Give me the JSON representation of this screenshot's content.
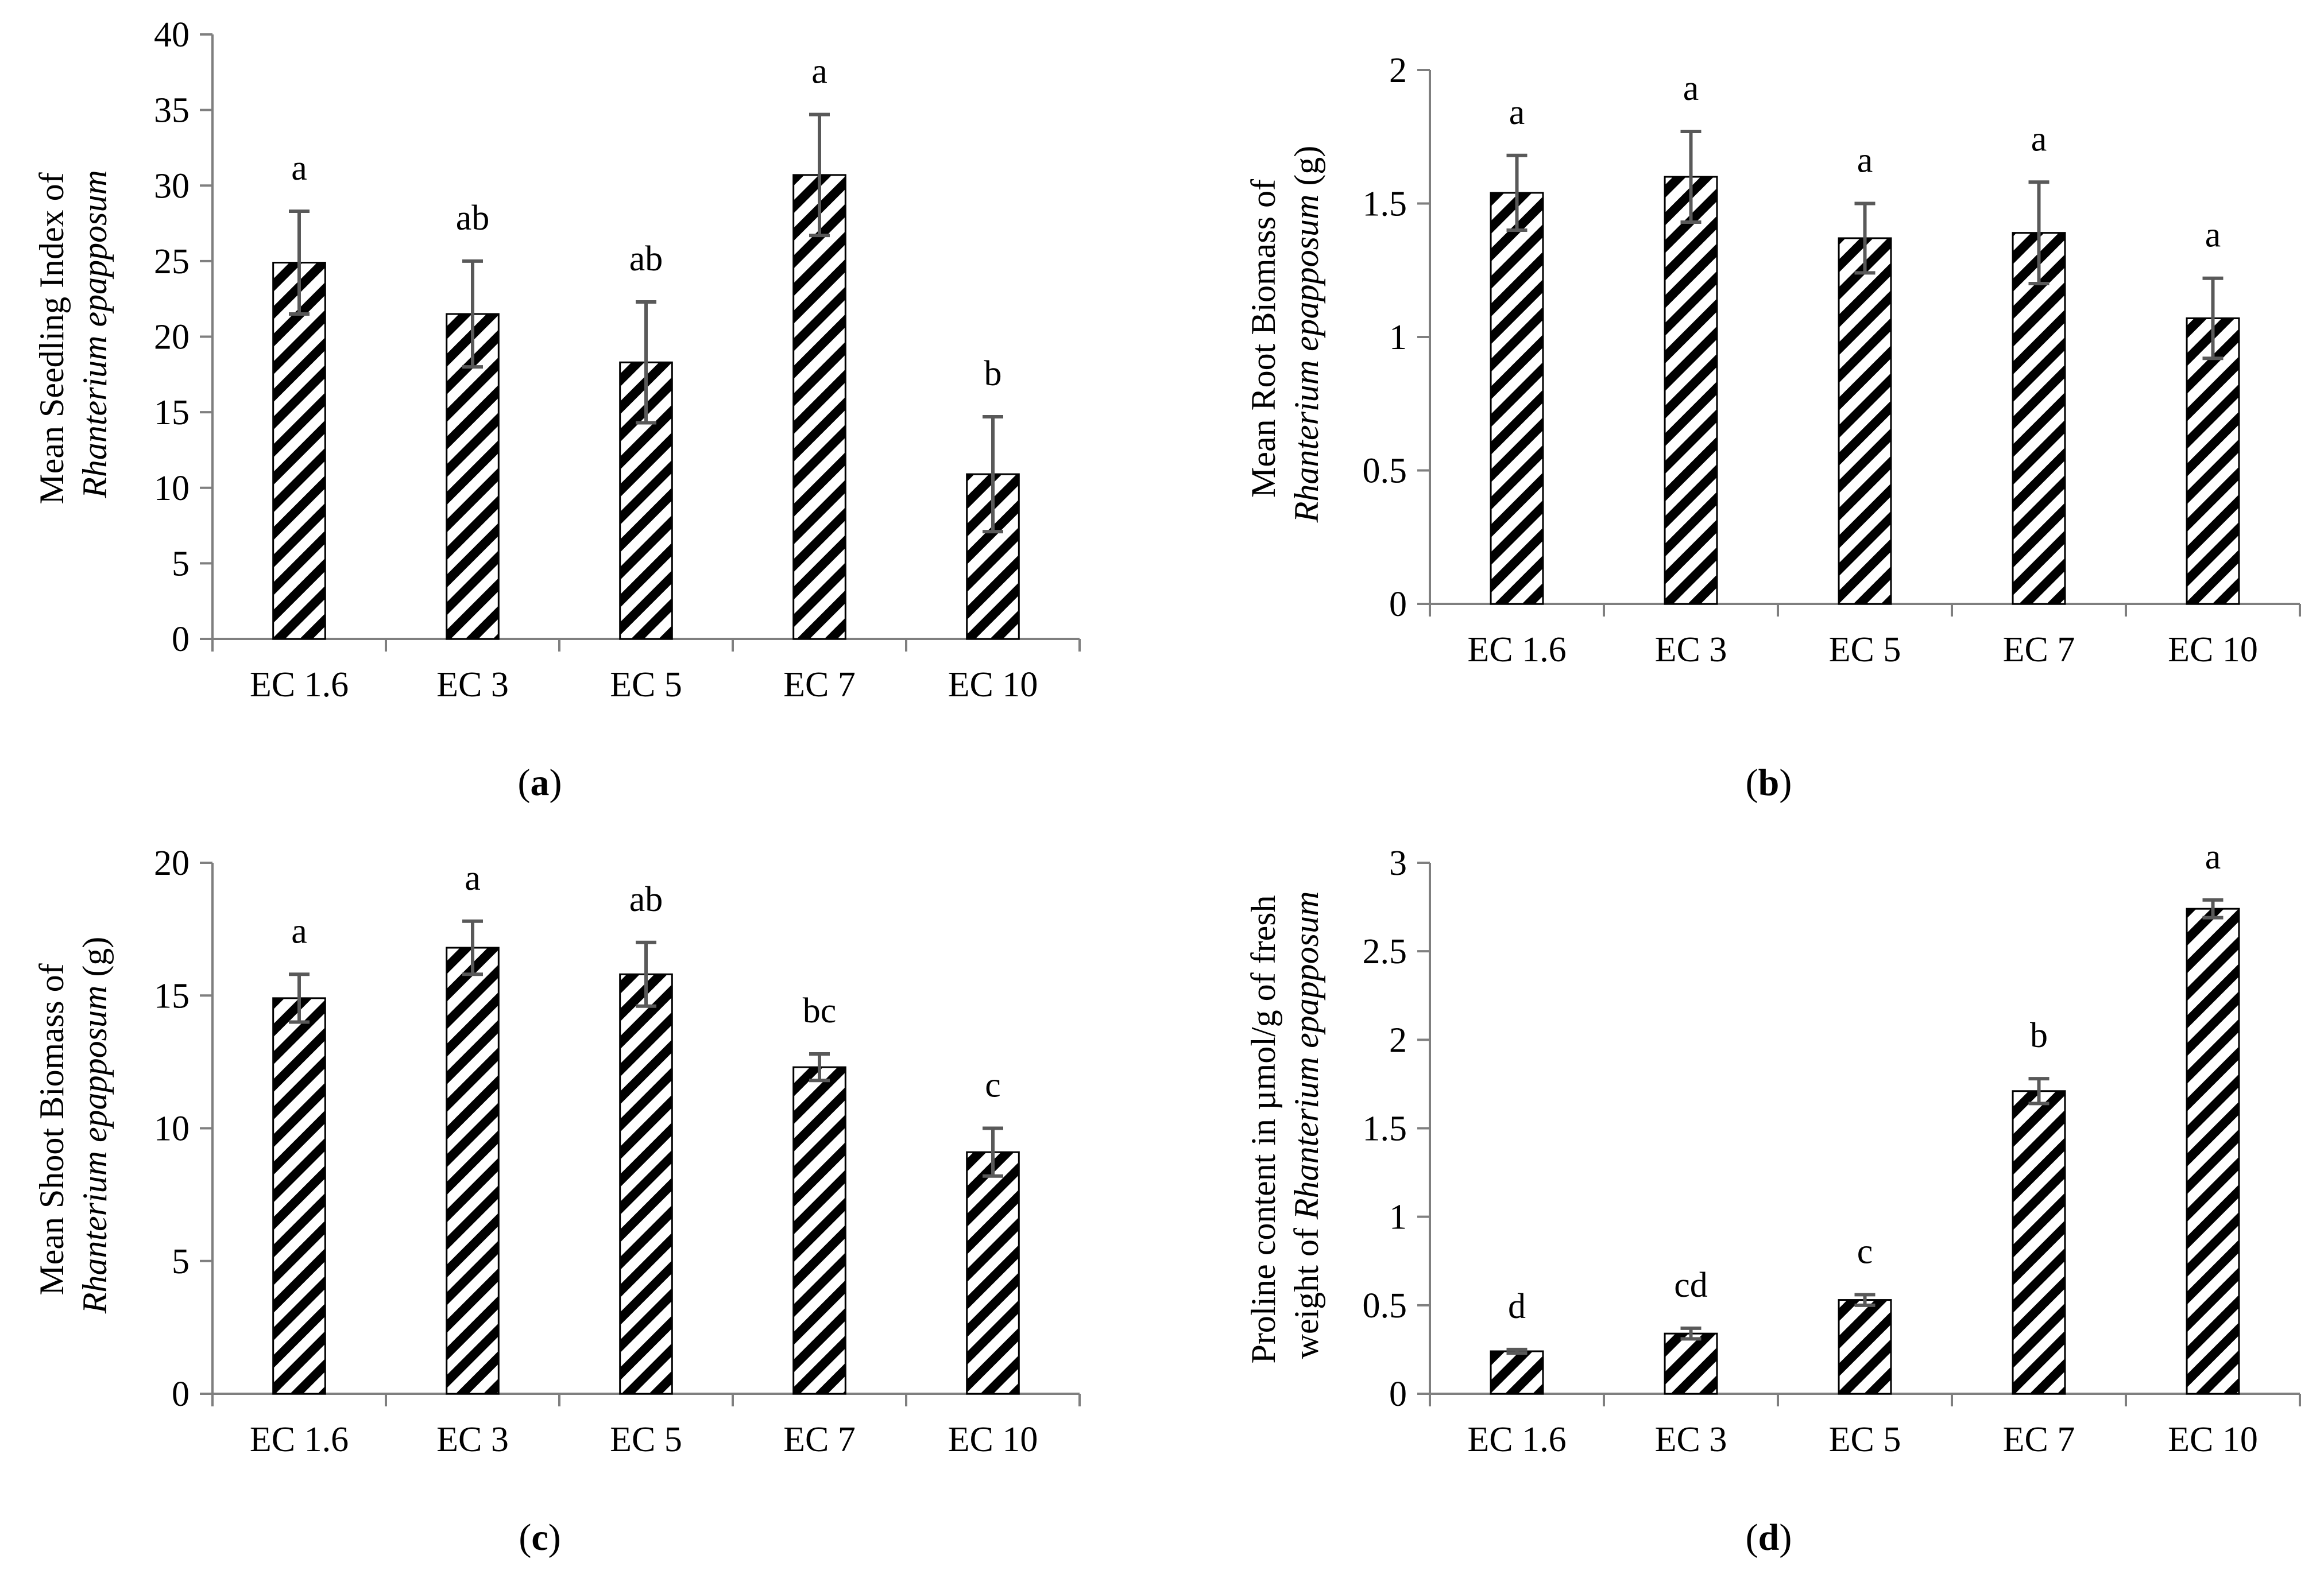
{
  "chart_data": [
    {
      "type": "bar",
      "panel_label": "a",
      "title": "",
      "ylabel_line1": "Mean Seedling Index of",
      "ylabel_species": "Rhanterium epapposum",
      "ylabel_unit": "",
      "categories": [
        "EC 1.6",
        "EC 3",
        "EC 5",
        "EC 7",
        "EC 10"
      ],
      "values": [
        24.9,
        21.5,
        18.3,
        30.7,
        10.9
      ],
      "errors": [
        3.4,
        3.5,
        4.0,
        4.0,
        3.8
      ],
      "letters": [
        "a",
        "ab",
        "ab",
        "a",
        "b"
      ],
      "ylim": [
        0,
        40
      ],
      "yticks": [
        0,
        5,
        10,
        15,
        20,
        25,
        30,
        35,
        40
      ],
      "ytick_labels": [
        "0",
        "5",
        "10",
        "15",
        "20",
        "25",
        "30",
        "35",
        "40"
      ]
    },
    {
      "type": "bar",
      "panel_label": "b",
      "title": "",
      "ylabel_line1": "Mean Root Biomass of",
      "ylabel_species": "Rhanterium epapposum",
      "ylabel_unit": "(g)",
      "categories": [
        "EC 1.6",
        "EC 3",
        "EC 5",
        "EC 7",
        "EC 10"
      ],
      "values": [
        1.54,
        1.6,
        1.37,
        1.39,
        1.07
      ],
      "errors": [
        0.14,
        0.17,
        0.13,
        0.19,
        0.15
      ],
      "letters": [
        "a",
        "a",
        "a",
        "a",
        "a"
      ],
      "ylim": [
        0,
        2
      ],
      "yticks": [
        0,
        0.5,
        1,
        1.5,
        2
      ],
      "ytick_labels": [
        "0",
        "0.5",
        "1",
        "1.5",
        "2"
      ]
    },
    {
      "type": "bar",
      "panel_label": "c",
      "title": "",
      "ylabel_line1": "Mean Shoot Biomass of",
      "ylabel_species": "Rhanterium  epapposum",
      "ylabel_unit": "(g)",
      "categories": [
        "EC 1.6",
        "EC 3",
        "EC 5",
        "EC 7",
        "EC 10"
      ],
      "values": [
        14.9,
        16.8,
        15.8,
        12.3,
        9.1
      ],
      "errors": [
        0.9,
        1.0,
        1.2,
        0.5,
        0.9
      ],
      "letters": [
        "a",
        "a",
        "ab",
        "bc",
        "c"
      ],
      "ylim": [
        0,
        20
      ],
      "yticks": [
        0,
        5,
        10,
        15,
        20
      ],
      "ytick_labels": [
        "0",
        "5",
        "10",
        "15",
        "20"
      ]
    },
    {
      "type": "bar",
      "panel_label": "d",
      "title": "",
      "ylabel_line1": "Proline content in µmol/g of fresh",
      "ylabel_line2": "weight of",
      "ylabel_species": "Rhanterium epapposum",
      "ylabel_unit": "",
      "categories": [
        "EC 1.6",
        "EC 3",
        "EC 5",
        "EC 7",
        "EC 10"
      ],
      "values": [
        0.24,
        0.34,
        0.53,
        1.71,
        2.74
      ],
      "errors": [
        0.01,
        0.03,
        0.03,
        0.07,
        0.05
      ],
      "letters": [
        "d",
        "cd",
        "c",
        "b",
        "a"
      ],
      "ylim": [
        0,
        3
      ],
      "yticks": [
        0,
        0.5,
        1,
        1.5,
        2,
        2.5,
        3
      ],
      "ytick_labels": [
        "0",
        "0.5",
        "1",
        "1.5",
        "2",
        "2.5",
        "3"
      ]
    }
  ],
  "colors": {
    "axis": "#7f7f7f",
    "bar_fill": "#000000",
    "bar_stripe": "#ffffff",
    "error_bar": "#595959",
    "text": "#000000"
  }
}
